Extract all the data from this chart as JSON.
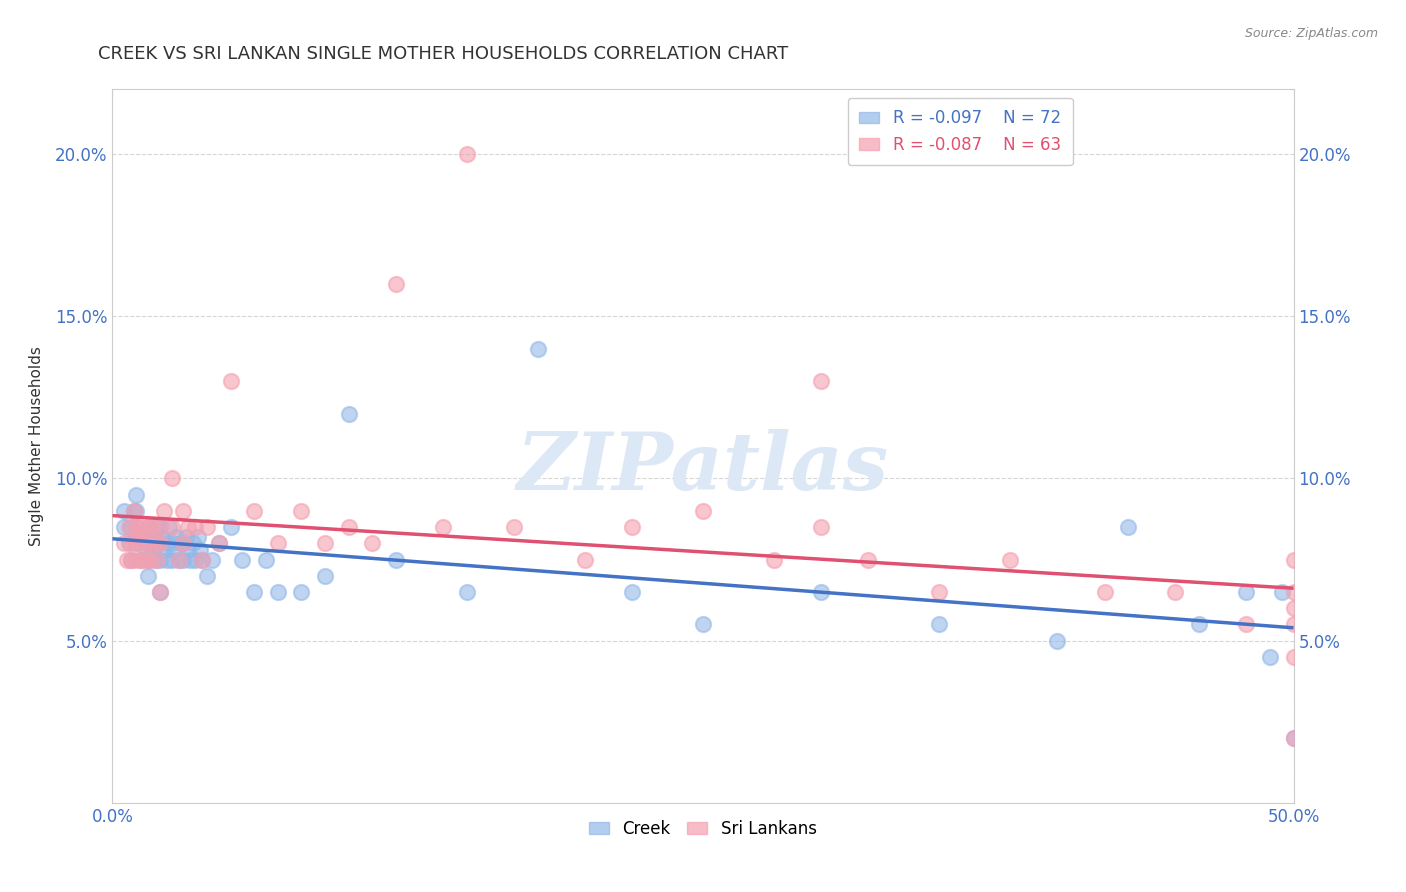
{
  "title": "CREEK VS SRI LANKAN SINGLE MOTHER HOUSEHOLDS CORRELATION CHART",
  "source_text": "Source: ZipAtlas.com",
  "ylabel": "Single Mother Households",
  "xlim": [
    0.0,
    0.5
  ],
  "ylim": [
    0.0,
    0.22
  ],
  "yticks": [
    0.05,
    0.1,
    0.15,
    0.2
  ],
  "ytick_labels": [
    "5.0%",
    "10.0%",
    "15.0%",
    "20.0%"
  ],
  "xtick_labels_left": "0.0%",
  "xtick_labels_right": "50.0%",
  "creek_R": -0.097,
  "creek_N": 72,
  "srilankans_R": -0.087,
  "srilankans_N": 63,
  "creek_color": "#93b8e8",
  "srilankans_color": "#f4a0b0",
  "creek_line_color": "#4472c4",
  "srilankans_line_color": "#e05070",
  "grid_color": "#cccccc",
  "background_color": "#ffffff",
  "title_color": "#333333",
  "axis_label_color": "#333333",
  "tick_label_color": "#4472c4",
  "watermark_color": "#dce8f5",
  "creek_scatter_x": [
    0.005,
    0.005,
    0.007,
    0.008,
    0.008,
    0.009,
    0.01,
    0.01,
    0.01,
    0.01,
    0.012,
    0.013,
    0.014,
    0.015,
    0.015,
    0.015,
    0.015,
    0.016,
    0.017,
    0.018,
    0.018,
    0.019,
    0.02,
    0.02,
    0.02,
    0.02,
    0.021,
    0.022,
    0.023,
    0.023,
    0.024,
    0.025,
    0.025,
    0.026,
    0.027,
    0.028,
    0.029,
    0.03,
    0.03,
    0.031,
    0.032,
    0.033,
    0.034,
    0.035,
    0.036,
    0.037,
    0.038,
    0.04,
    0.042,
    0.045,
    0.05,
    0.055,
    0.06,
    0.065,
    0.07,
    0.08,
    0.09,
    0.1,
    0.12,
    0.15,
    0.18,
    0.22,
    0.25,
    0.3,
    0.35,
    0.4,
    0.43,
    0.46,
    0.48,
    0.49,
    0.495,
    0.5
  ],
  "creek_scatter_y": [
    0.085,
    0.09,
    0.08,
    0.075,
    0.085,
    0.09,
    0.08,
    0.085,
    0.09,
    0.095,
    0.075,
    0.082,
    0.078,
    0.08,
    0.085,
    0.075,
    0.07,
    0.082,
    0.078,
    0.08,
    0.075,
    0.085,
    0.08,
    0.075,
    0.085,
    0.065,
    0.082,
    0.078,
    0.075,
    0.08,
    0.085,
    0.075,
    0.08,
    0.078,
    0.082,
    0.075,
    0.08,
    0.075,
    0.08,
    0.082,
    0.078,
    0.075,
    0.08,
    0.075,
    0.082,
    0.078,
    0.075,
    0.07,
    0.075,
    0.08,
    0.085,
    0.075,
    0.065,
    0.075,
    0.065,
    0.065,
    0.07,
    0.12,
    0.075,
    0.065,
    0.14,
    0.065,
    0.055,
    0.065,
    0.055,
    0.05,
    0.085,
    0.055,
    0.065,
    0.045,
    0.065,
    0.02
  ],
  "srilankans_scatter_x": [
    0.005,
    0.006,
    0.007,
    0.008,
    0.008,
    0.009,
    0.01,
    0.01,
    0.01,
    0.011,
    0.012,
    0.012,
    0.013,
    0.014,
    0.015,
    0.015,
    0.016,
    0.017,
    0.018,
    0.019,
    0.02,
    0.02,
    0.02,
    0.022,
    0.025,
    0.025,
    0.028,
    0.03,
    0.03,
    0.032,
    0.035,
    0.038,
    0.04,
    0.045,
    0.05,
    0.06,
    0.07,
    0.08,
    0.09,
    0.1,
    0.11,
    0.12,
    0.14,
    0.15,
    0.17,
    0.2,
    0.22,
    0.25,
    0.28,
    0.3,
    0.3,
    0.32,
    0.35,
    0.38,
    0.42,
    0.45,
    0.48,
    0.5,
    0.5,
    0.5,
    0.5,
    0.5,
    0.5
  ],
  "srilankans_scatter_y": [
    0.08,
    0.075,
    0.085,
    0.08,
    0.075,
    0.09,
    0.08,
    0.085,
    0.075,
    0.082,
    0.075,
    0.085,
    0.08,
    0.075,
    0.085,
    0.08,
    0.075,
    0.085,
    0.08,
    0.075,
    0.085,
    0.08,
    0.065,
    0.09,
    0.085,
    0.1,
    0.075,
    0.09,
    0.08,
    0.085,
    0.085,
    0.075,
    0.085,
    0.08,
    0.13,
    0.09,
    0.08,
    0.09,
    0.08,
    0.085,
    0.08,
    0.16,
    0.085,
    0.2,
    0.085,
    0.075,
    0.085,
    0.09,
    0.075,
    0.13,
    0.085,
    0.075,
    0.065,
    0.075,
    0.065,
    0.065,
    0.055,
    0.065,
    0.06,
    0.055,
    0.075,
    0.045,
    0.02
  ]
}
